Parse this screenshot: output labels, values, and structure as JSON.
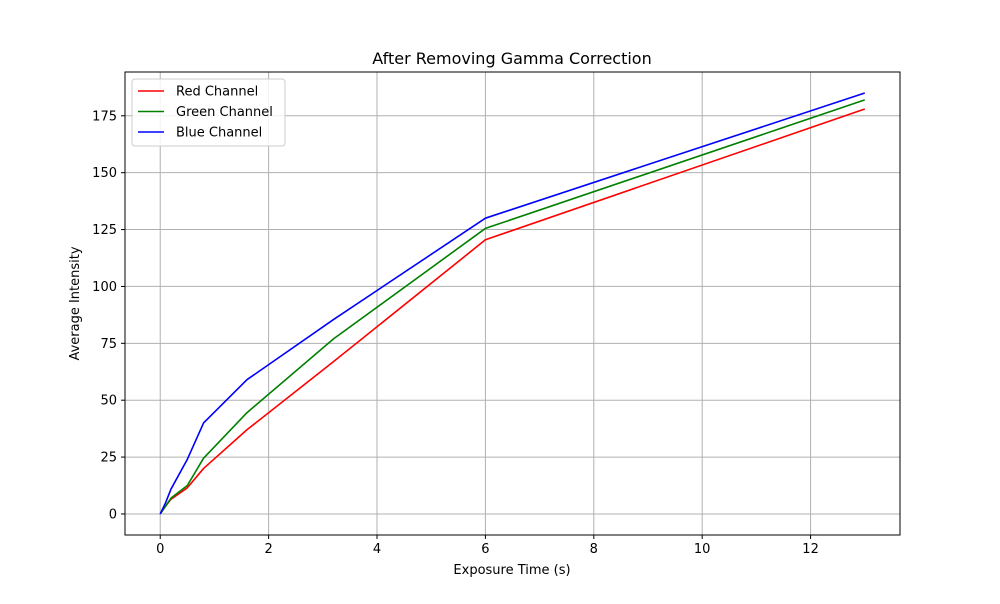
{
  "chart_data": {
    "type": "line",
    "title": "After Removing Gamma Correction",
    "xlabel": "Exposure Time (s)",
    "ylabel": "Average Intensity",
    "xlim": [
      -0.65,
      13.65
    ],
    "ylim": [
      -9.25,
      194.25
    ],
    "xticks": [
      0,
      2,
      4,
      6,
      8,
      10,
      12
    ],
    "yticks": [
      0,
      25,
      50,
      75,
      100,
      125,
      150,
      175
    ],
    "grid": true,
    "legend_position": "top-left",
    "x": [
      0,
      0.1,
      0.2,
      0.5,
      0.8,
      1.6,
      3.2,
      6,
      13
    ],
    "series": [
      {
        "name": "Red Channel",
        "color": "#ff0000",
        "values": [
          0,
          3.5,
          6.5,
          11.5,
          20,
          37,
          67,
          120.5,
          178
        ]
      },
      {
        "name": "Green Channel",
        "color": "#008000",
        "values": [
          0,
          3.5,
          7,
          12.5,
          24.5,
          44.5,
          77,
          125.5,
          182
        ]
      },
      {
        "name": "Blue Channel",
        "color": "#0000ff",
        "values": [
          0,
          5,
          11,
          24,
          40,
          59,
          85.5,
          130,
          185
        ]
      }
    ]
  }
}
